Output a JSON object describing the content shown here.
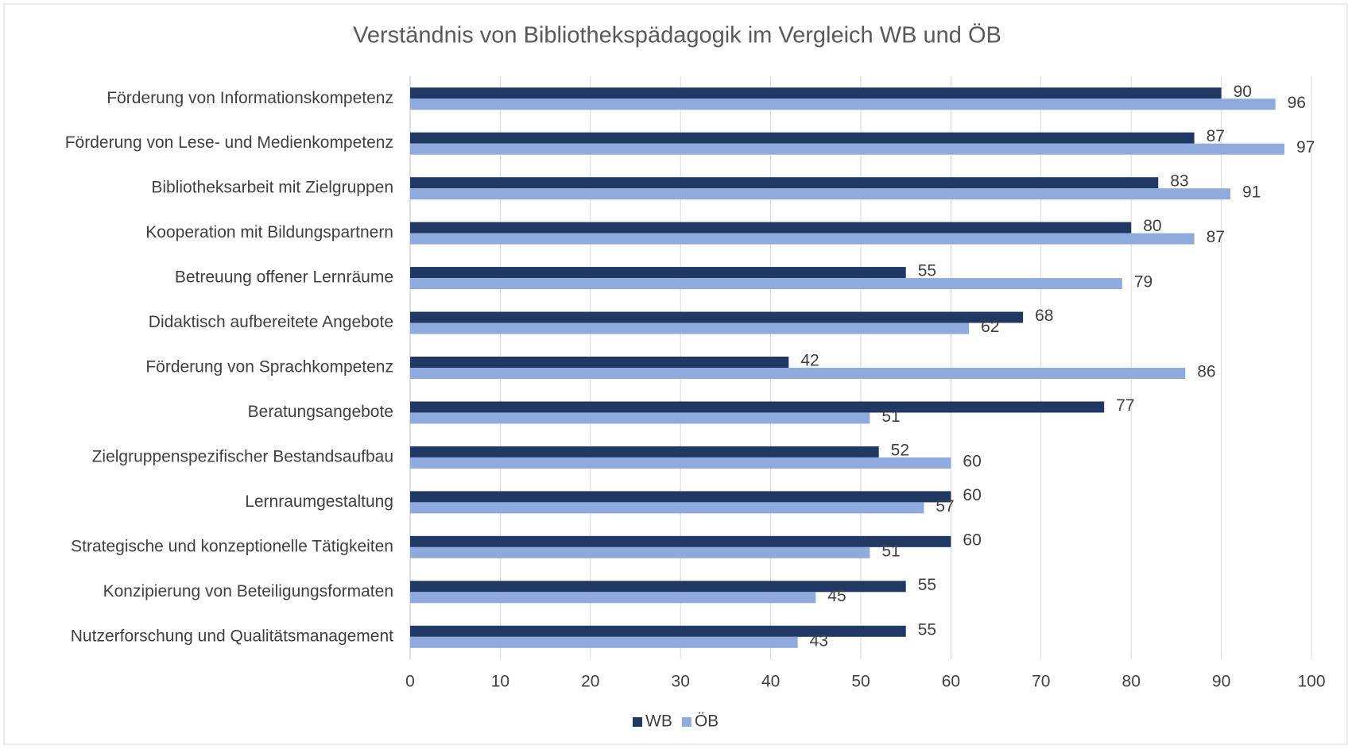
{
  "chart_data": {
    "type": "bar",
    "orientation": "horizontal",
    "title": "Verständnis von Bibliothekspädagogik im Vergleich WB und ÖB",
    "categories": [
      "Förderung von Informationskompetenz",
      "Förderung von Lese- und Medienkompetenz",
      "Bibliotheksarbeit mit Zielgruppen",
      "Kooperation mit Bildungspartnern",
      "Betreuung offener Lernräume",
      "Didaktisch aufbereitete Angebote",
      "Förderung von Sprachkompetenz",
      "Beratungsangebote",
      "Zielgruppenspezifischer Bestandsaufbau",
      "Lernraumgestaltung",
      "Strategische und konzeptionelle Tätigkeiten",
      "Konzipierung von Beteiligungsformaten",
      "Nutzerforschung und Qualitätsmanagement"
    ],
    "series": [
      {
        "name": "WB",
        "color": "#203864",
        "values": [
          90,
          87,
          83,
          80,
          55,
          68,
          42,
          77,
          52,
          60,
          60,
          55,
          55
        ]
      },
      {
        "name": "ÖB",
        "color": "#8faadc",
        "values": [
          96,
          97,
          91,
          87,
          79,
          62,
          86,
          51,
          60,
          57,
          51,
          45,
          43
        ]
      }
    ],
    "xlim": [
      0,
      100
    ],
    "xticks": [
      0,
      10,
      20,
      30,
      40,
      50,
      60,
      70,
      80,
      90,
      100
    ],
    "grid": true,
    "legend": "bottom"
  }
}
